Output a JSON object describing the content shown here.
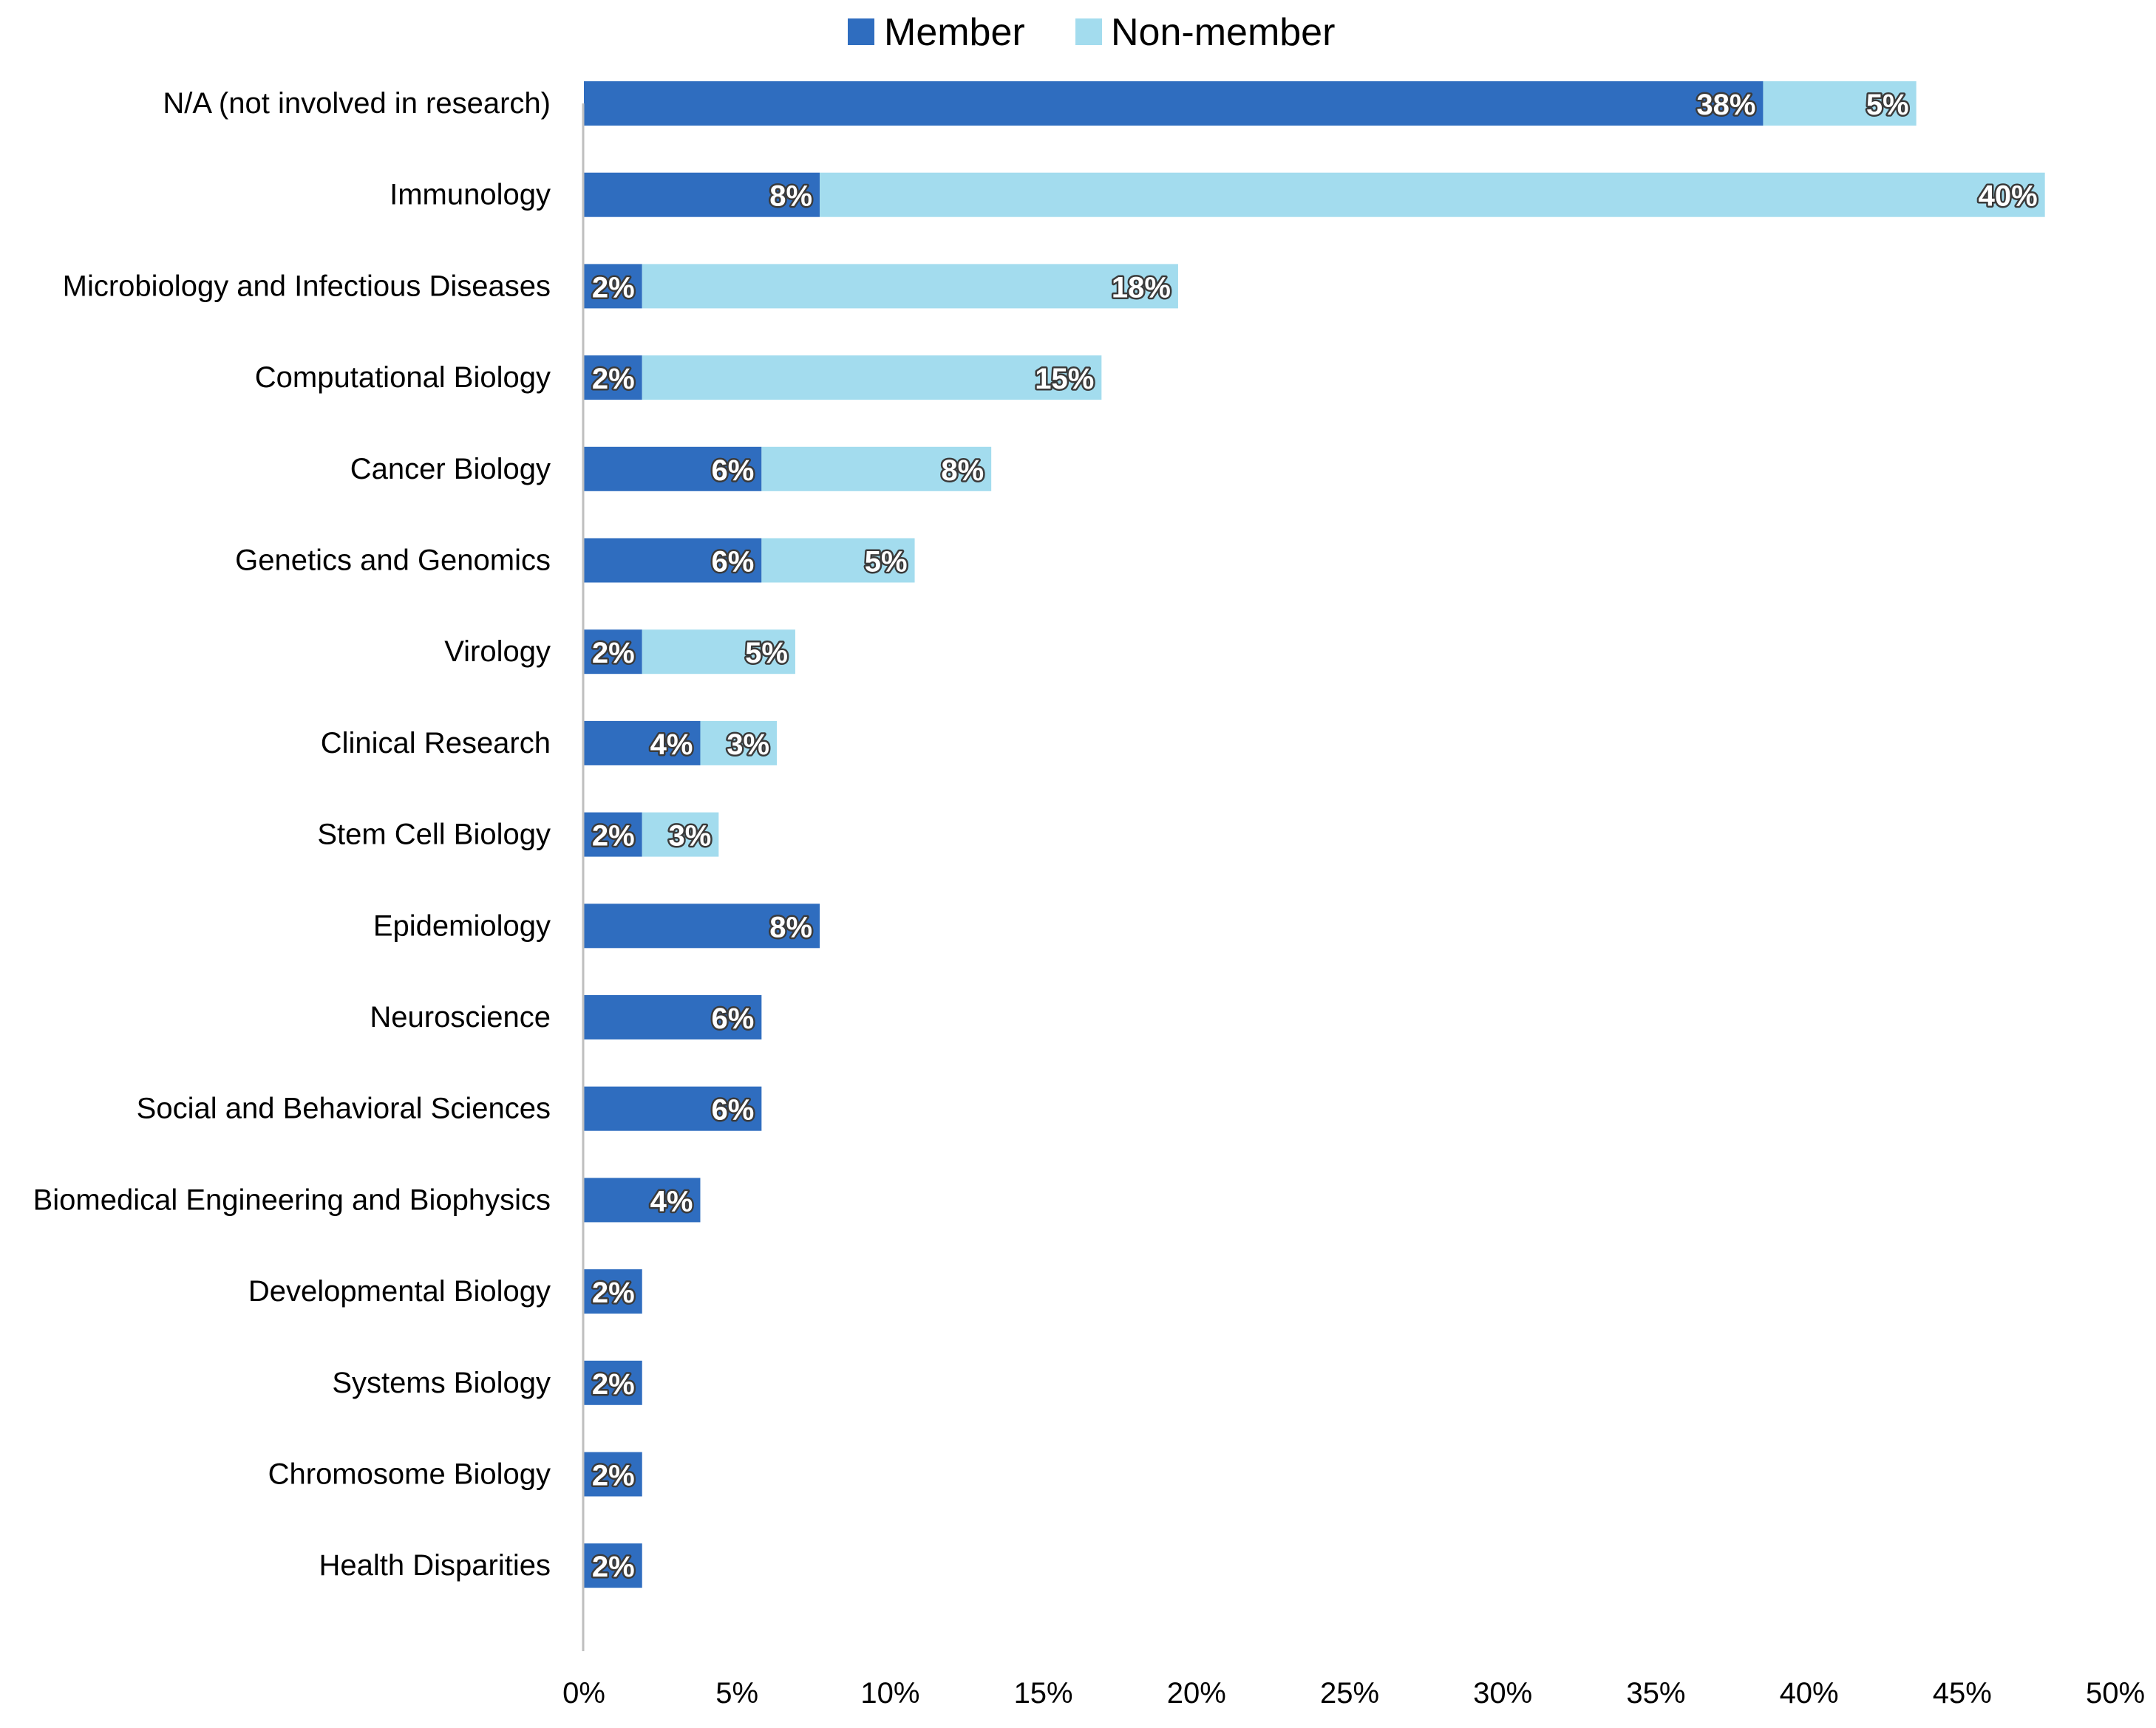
{
  "chart_data": {
    "type": "bar",
    "orientation": "horizontal",
    "stacked": true,
    "categories": [
      "N/A (not involved in research)",
      "Immunology",
      "Microbiology and Infectious Diseases",
      "Computational Biology",
      "Cancer Biology",
      "Genetics and Genomics",
      "Virology",
      "Clinical Research",
      "Stem Cell Biology",
      "Epidemiology",
      "Neuroscience",
      "Social and Behavioral Sciences",
      "Biomedical Engineering and Biophysics",
      "Developmental Biology",
      "Systems Biology",
      "Chromosome Biology",
      "Health Disparities"
    ],
    "series": [
      {
        "name": "Member",
        "color": "#2f6dbf",
        "values": [
          38.5,
          7.7,
          1.9,
          1.9,
          5.8,
          5.8,
          1.9,
          3.8,
          1.9,
          7.7,
          5.8,
          5.8,
          3.8,
          1.9,
          1.9,
          1.9,
          1.9
        ],
        "labels": [
          "38%",
          "8%",
          "2%",
          "2%",
          "6%",
          "6%",
          "2%",
          "4%",
          "2%",
          "8%",
          "6%",
          "6%",
          "4%",
          "2%",
          "2%",
          "2%",
          "2%"
        ]
      },
      {
        "name": "Non-member",
        "color": "#a3dcee",
        "values": [
          5.0,
          40.0,
          17.5,
          15.0,
          7.5,
          5.0,
          5.0,
          2.5,
          2.5,
          0,
          0,
          0,
          0,
          0,
          0,
          0,
          0
        ],
        "labels": [
          "5%",
          "40%",
          "18%",
          "15%",
          "8%",
          "5%",
          "5%",
          "3%",
          "3%",
          "",
          "",
          "",
          "",
          "",
          "",
          "",
          ""
        ]
      }
    ],
    "xlim": [
      0,
      50
    ],
    "xticks": [
      "0%",
      "5%",
      "10%",
      "15%",
      "20%",
      "25%",
      "30%",
      "35%",
      "40%",
      "45%",
      "50%"
    ],
    "grid": false,
    "legend": "top-center",
    "axis_color": "#bfbfbf"
  }
}
